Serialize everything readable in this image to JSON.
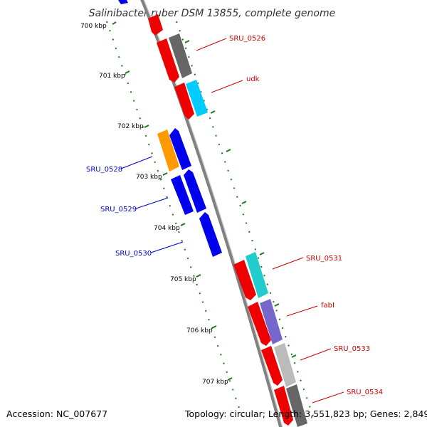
{
  "title": "Salinibacter ruber DSM 13855, complete genome",
  "footer": {
    "accession": "Accession: NC_007677",
    "topology": "Topology: circular; Length: 3,551,823 bp; Genes: 2,849"
  },
  "ticks": [
    "700 kbp",
    "701 kbp",
    "702 kbp",
    "703 kbp",
    "704 kbp",
    "705 kbp",
    "706 kbp",
    "707 kbp"
  ],
  "genes": [
    {
      "label": "SRU_0526",
      "strand": "forward",
      "color": "#ee0000"
    },
    {
      "label": "udk",
      "strand": "forward",
      "color": "#ee0000"
    },
    {
      "label": "SRU_0528",
      "strand": "reverse",
      "color": "#0000cc"
    },
    {
      "label": "SRU_0529",
      "strand": "reverse",
      "color": "#0000cc"
    },
    {
      "label": "SRU_0530",
      "strand": "reverse",
      "color": "#0000cc"
    },
    {
      "label": "SRU_0531",
      "strand": "forward",
      "color": "#ee0000"
    },
    {
      "label": "fabI",
      "strand": "forward",
      "color": "#ee0000"
    },
    {
      "label": "SRU_0533",
      "strand": "forward",
      "color": "#ee0000"
    },
    {
      "label": "SRU_0534",
      "strand": "forward",
      "color": "#ee0000"
    }
  ],
  "colors": {
    "forward": "#ee0000",
    "reverse": "#0000ee",
    "backbone": "#808080",
    "gc_skew_ticks": "#1a7a1a",
    "cog_orange": "#ff9900",
    "cog_gray": "#666666",
    "cog_lightblue": "#00ccff",
    "cog_teal": "#22cccc",
    "cog_purple": "#7766cc",
    "cog_lightgray": "#bbbbbb"
  }
}
